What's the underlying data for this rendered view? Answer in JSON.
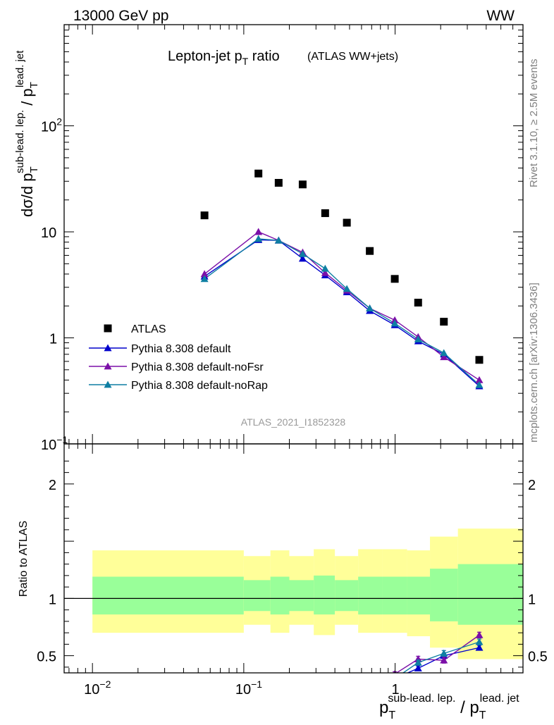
{
  "header": {
    "left": "13000 GeV pp",
    "right": "WW"
  },
  "side_labels": {
    "rivet": "Rivet 3.1.10, ≥ 2.5M events",
    "mcplots": "mcplots.cern.ch [arXiv:1306.3436]"
  },
  "chart_data": {
    "type": "scatter",
    "title_main": "Lepton-jet p",
    "title_sub": "T",
    "title_tail": " ratio",
    "title_paren": "(ATLAS WW+jets)",
    "analysis_label": "ATLAS_2021_I1852328",
    "log_x": true,
    "log_y_main": true,
    "xlim": [
      0.0065,
      7.0
    ],
    "ylim_main": [
      0.1,
      900
    ],
    "ylim_ratio": [
      0.35,
      2.35
    ],
    "x_ticks": [
      {
        "base": "10",
        "exp": "−2",
        "v": 0.01
      },
      {
        "base": "10",
        "exp": "−1",
        "v": 0.1
      },
      {
        "base": "1",
        "exp": "",
        "v": 1
      }
    ],
    "y_ticks_main": [
      {
        "base": "10",
        "exp": "−1",
        "v": 0.1
      },
      {
        "base": "1",
        "exp": "",
        "v": 1
      },
      {
        "base": "10",
        "exp": "",
        "v": 10
      },
      {
        "base": "10",
        "exp": "2",
        "v": 100
      }
    ],
    "y_ticks_ratio": [
      {
        "label": "0.5",
        "v": 0.5
      },
      {
        "label": "1",
        "v": 1
      },
      {
        "label": "2",
        "v": 2
      }
    ],
    "ylabel_main": {
      "a": "dσ/d p",
      "a_sub": "T",
      "a_sup": "sub-lead. lep.",
      "b": " / p",
      "b_sub": "T",
      "b_sup": "lead. jet"
    },
    "ylabel_ratio": "Ratio to ATLAS",
    "xlabel": {
      "a": "p",
      "a_sub": "T",
      "a_sup": "sub-lead. lep.",
      "b": " / p",
      "b_sub": "T",
      "b_sup": "lead. jet"
    },
    "x": [
      0.055,
      0.125,
      0.17,
      0.245,
      0.345,
      0.48,
      0.68,
      0.995,
      1.42,
      2.1,
      3.6
    ],
    "data": {
      "name": "ATLAS",
      "y": [
        14.3,
        35.5,
        29.0,
        28.0,
        15.0,
        12.2,
        6.6,
        3.6,
        2.15,
        1.42,
        0.62
      ],
      "color": "#000000"
    },
    "series": [
      {
        "name": "Pythia 8.308 default",
        "color": "#0000cc",
        "y": [
          3.8,
          8.4,
          8.3,
          5.6,
          3.9,
          2.7,
          1.8,
          1.32,
          0.93,
          0.7,
          0.35
        ]
      },
      {
        "name": "Pythia 8.308 default-noFsr",
        "color": "#7b0fa8",
        "y": [
          4.0,
          10.0,
          8.3,
          6.4,
          4.1,
          2.8,
          1.9,
          1.47,
          1.02,
          0.66,
          0.4
        ]
      },
      {
        "name": "Pythia 8.308 default-noRap",
        "color": "#0e7fa3",
        "y": [
          3.6,
          8.6,
          8.3,
          6.2,
          4.5,
          2.9,
          1.9,
          1.37,
          0.97,
          0.72,
          0.36
        ]
      }
    ],
    "ratio_series": [
      {
        "color": "#0000cc",
        "x": [
          0.995,
          1.42,
          2.1,
          3.6
        ],
        "y": [
          0.3,
          0.39,
          0.5,
          0.57
        ],
        "err": [
          0,
          0.02,
          0.02,
          0.02
        ]
      },
      {
        "color": "#7b0fa8",
        "x": [
          0.995,
          1.42,
          2.1,
          3.6
        ],
        "y": [
          0.34,
          0.47,
          0.46,
          0.68
        ],
        "err": [
          0.02,
          0.025,
          0.025,
          0.025
        ]
      },
      {
        "color": "#0e7fa3",
        "x": [
          0.995,
          1.42,
          2.1,
          3.6
        ],
        "y": [
          0.3,
          0.44,
          0.52,
          0.62
        ],
        "err": [
          0,
          0.02,
          0.025,
          0.025
        ]
      }
    ],
    "bands": {
      "edges": [
        0.01,
        0.1,
        0.15,
        0.2,
        0.29,
        0.4,
        0.57,
        0.82,
        1.2,
        1.7,
        2.6,
        7.0
      ],
      "yellow_lo": [
        0.7,
        0.77,
        0.7,
        0.77,
        0.68,
        0.77,
        0.7,
        0.7,
        0.67,
        0.57,
        0.47
      ],
      "yellow_hi": [
        1.42,
        1.37,
        1.42,
        1.37,
        1.43,
        1.37,
        1.43,
        1.43,
        1.42,
        1.54,
        1.61
      ],
      "green_lo": [
        0.86,
        0.89,
        0.86,
        0.89,
        0.86,
        0.89,
        0.86,
        0.86,
        0.86,
        0.8,
        0.77
      ],
      "green_hi": [
        1.19,
        1.16,
        1.19,
        1.16,
        1.2,
        1.16,
        1.19,
        1.19,
        1.19,
        1.26,
        1.3
      ],
      "yellow_color": "#ffff99",
      "green_color": "#99ff99"
    }
  }
}
